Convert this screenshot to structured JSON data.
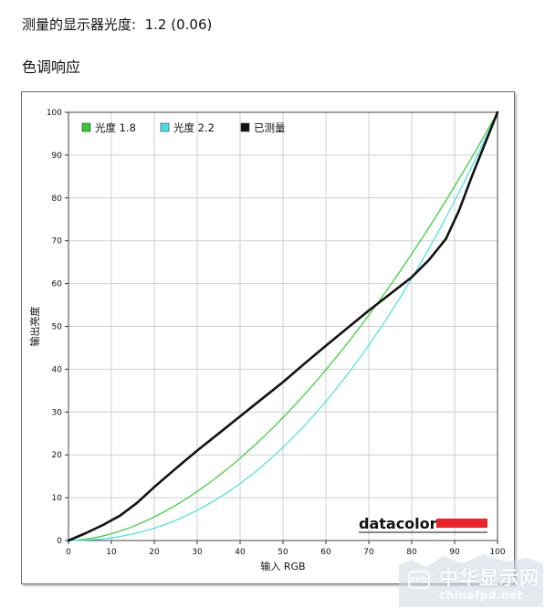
{
  "header": {
    "measured_gamma_label": "测量的显示器光度:",
    "measured_gamma_value": "1.2 (0.06)"
  },
  "section": {
    "title": "色调响应"
  },
  "chart_data": {
    "type": "line",
    "xlabel": "输入 RGB",
    "ylabel": "输出亮度",
    "xlim": [
      0,
      100
    ],
    "ylim": [
      0,
      100
    ],
    "x_ticks": [
      "0",
      "10",
      "20",
      "30",
      "40",
      "50",
      "60",
      "70",
      "80",
      "90",
      "100"
    ],
    "y_ticks": [
      "0",
      "10",
      "20",
      "30",
      "40",
      "50",
      "60",
      "70",
      "80",
      "90",
      "100"
    ],
    "grid": true,
    "legend_position": "top-left",
    "series": [
      {
        "name": "光度 1.8",
        "color": "#33cc33",
        "type": "gamma",
        "gamma": 1.8,
        "x": [
          0,
          5,
          10,
          15,
          20,
          25,
          30,
          35,
          40,
          45,
          50,
          55,
          60,
          65,
          70,
          75,
          80,
          85,
          90,
          95,
          100
        ],
        "values": [
          0,
          0.5,
          1.6,
          3.3,
          5.5,
          8.2,
          11.5,
          15.1,
          19.2,
          23.8,
          28.7,
          34.1,
          39.9,
          46.0,
          52.6,
          59.6,
          66.9,
          74.6,
          82.7,
          91.2,
          100
        ]
      },
      {
        "name": "光度 2.2",
        "color": "#44e0e8",
        "type": "gamma",
        "gamma": 2.2,
        "x": [
          0,
          5,
          10,
          15,
          20,
          25,
          30,
          35,
          40,
          45,
          50,
          55,
          60,
          65,
          70,
          75,
          80,
          85,
          90,
          95,
          100
        ],
        "values": [
          0,
          0.1,
          0.6,
          1.5,
          2.9,
          4.7,
          7.1,
          9.9,
          13.3,
          17.3,
          21.8,
          26.8,
          32.5,
          38.8,
          45.6,
          53.1,
          61.2,
          69.9,
          79.3,
          89.3,
          100
        ]
      },
      {
        "name": "已测量",
        "color": "#111111",
        "type": "measured",
        "x": [
          0,
          4,
          8,
          12,
          16,
          20,
          25,
          30,
          35,
          40,
          45,
          50,
          55,
          60,
          65,
          70,
          75,
          80,
          84,
          88,
          91,
          94,
          97,
          100
        ],
        "values": [
          0,
          1.7,
          3.6,
          5.8,
          8.8,
          12.5,
          16.8,
          21,
          25,
          29,
          33,
          37,
          41.3,
          45.5,
          49.6,
          53.7,
          57.6,
          61.5,
          65.5,
          70.5,
          77,
          85,
          92.5,
          100
        ]
      }
    ]
  },
  "branding": {
    "logo_text": "datacolor",
    "accent_color": "#e8232c"
  },
  "watermark": {
    "badge": "FPD",
    "name_cn": "中华显示网",
    "url": "chinafpd.net"
  }
}
